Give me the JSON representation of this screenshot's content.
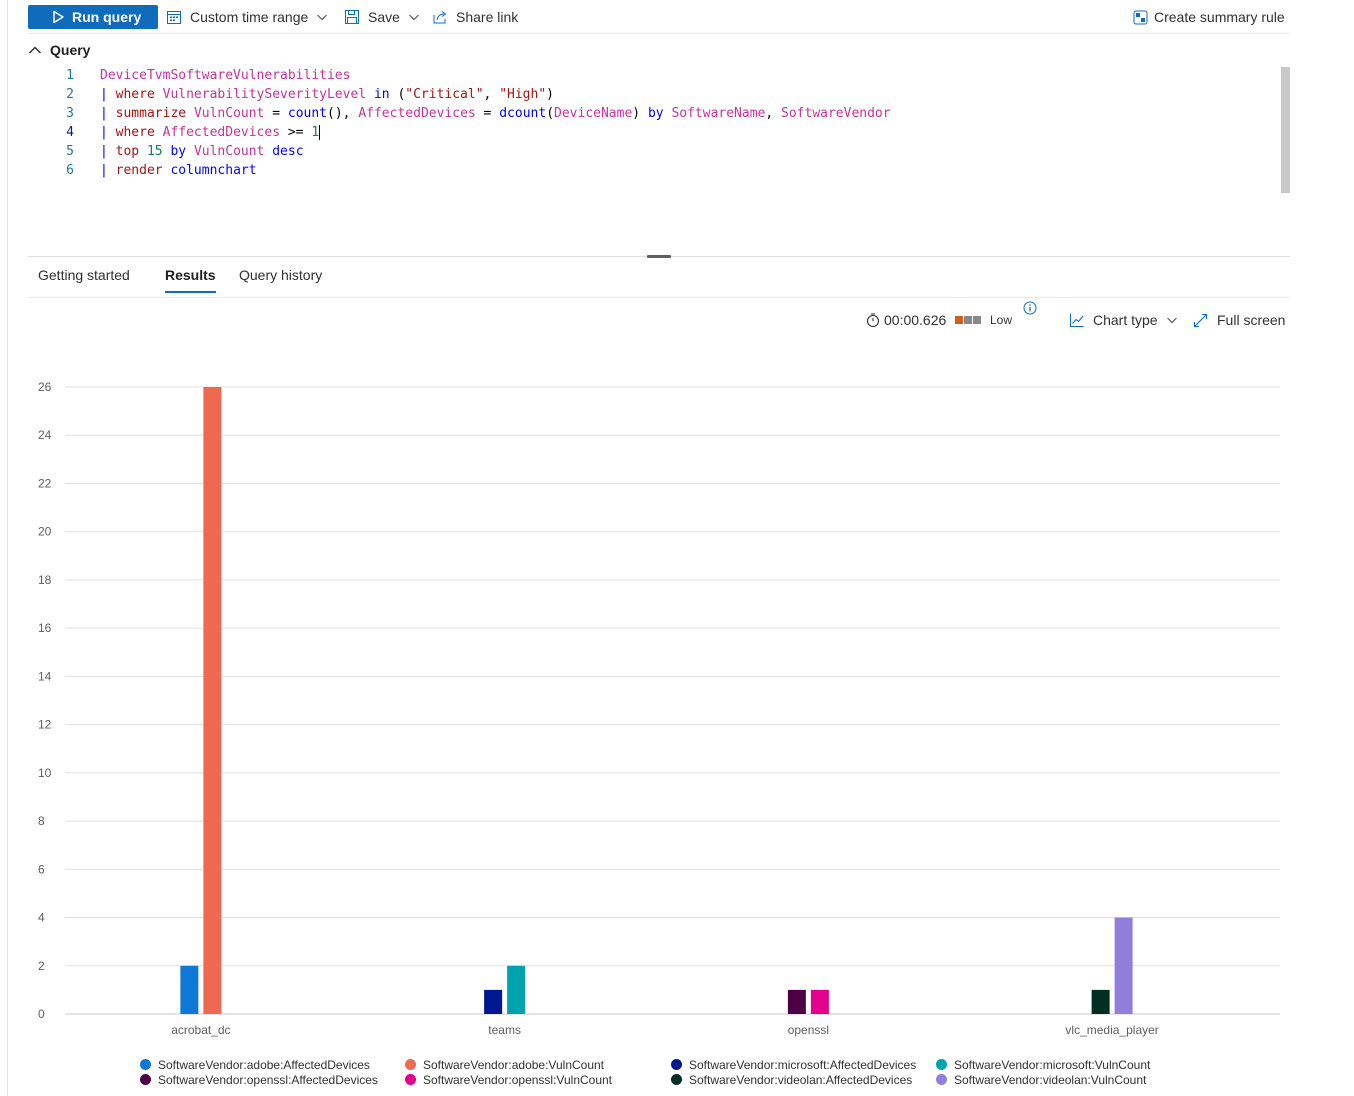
{
  "toolbar": {
    "run_query": "Run query",
    "time_range": "Custom time range",
    "save": "Save",
    "share_link": "Share link",
    "create_summary_rule": "Create summary rule"
  },
  "query": {
    "header": "Query",
    "lines": [
      {
        "num": "1"
      },
      {
        "num": "2"
      },
      {
        "num": "3"
      },
      {
        "num": "4"
      },
      {
        "num": "5"
      },
      {
        "num": "6"
      }
    ],
    "tokens": {
      "l1_table": "DeviceTvmSoftwareVulnerabilities",
      "l2_pipe": "| ",
      "l2_where": "where",
      "l2_col": "VulnerabilitySeverityLevel",
      "l2_in": "in",
      "l2_open": "(",
      "l2_s1": "\"Critical\"",
      "l2_comma": ", ",
      "l2_s2": "\"High\"",
      "l2_close": ")",
      "l3_pipe": "| ",
      "l3_summarize": "summarize",
      "l3_vuln": "VulnCount",
      "l3_eq1": " = ",
      "l3_count": "count",
      "l3_paren": "(), ",
      "l3_aff": "AffectedDevices",
      "l3_eq2": " = ",
      "l3_dcount": "dcount",
      "l3_open": "(",
      "l3_dev": "DeviceName",
      "l3_close": ") ",
      "l3_by": "by",
      "l3_sw": "SoftwareName",
      "l3_comma": ", ",
      "l3_vendor": "SoftwareVendor",
      "l4_pipe": "| ",
      "l4_where": "where",
      "l4_aff": "AffectedDevices",
      "l4_op": " >= ",
      "l4_num": "1",
      "l5_pipe": "| ",
      "l5_top": "top",
      "l5_n": "15",
      "l5_by": "by",
      "l5_col": "VulnCount",
      "l5_desc": "desc",
      "l6_pipe": "| ",
      "l6_render": "render",
      "l6_chart": "columnchart"
    }
  },
  "tabs": [
    "Getting started",
    "Results",
    "Query history"
  ],
  "results_bar": {
    "duration": "00:00.626",
    "level": "Low",
    "chart_type": "Chart type",
    "full_screen": "Full screen"
  },
  "chart_data": {
    "type": "bar",
    "categories": [
      "acrobat_dc",
      "teams",
      "openssl",
      "vlc_media_player"
    ],
    "ylim": [
      0,
      26
    ],
    "yticks": [
      0,
      2,
      4,
      6,
      8,
      10,
      12,
      14,
      16,
      18,
      20,
      22,
      24,
      26
    ],
    "grid": true,
    "legend_position": "bottom",
    "series": [
      {
        "name": "SoftwareVendor:adobe:AffectedDevices",
        "color": "#0f78d4",
        "values": [
          2,
          null,
          null,
          null
        ]
      },
      {
        "name": "SoftwareVendor:adobe:VulnCount",
        "color": "#ef6950",
        "values": [
          26,
          null,
          null,
          null
        ]
      },
      {
        "name": "SoftwareVendor:microsoft:AffectedDevices",
        "color": "#00188f",
        "values": [
          null,
          1,
          null,
          null
        ]
      },
      {
        "name": "SoftwareVendor:microsoft:VulnCount",
        "color": "#00a2ad",
        "values": [
          null,
          2,
          null,
          null
        ]
      },
      {
        "name": "SoftwareVendor:openssl:AffectedDevices",
        "color": "#4c0045",
        "values": [
          null,
          null,
          1,
          null
        ]
      },
      {
        "name": "SoftwareVendor:openssl:VulnCount",
        "color": "#e3008c",
        "values": [
          null,
          null,
          1,
          null
        ]
      },
      {
        "name": "SoftwareVendor:videolan:AffectedDevices",
        "color": "#022f22",
        "values": [
          null,
          null,
          null,
          1
        ]
      },
      {
        "name": "SoftwareVendor:videolan:VulnCount",
        "color": "#917edb",
        "values": [
          null,
          null,
          null,
          4
        ]
      }
    ]
  }
}
